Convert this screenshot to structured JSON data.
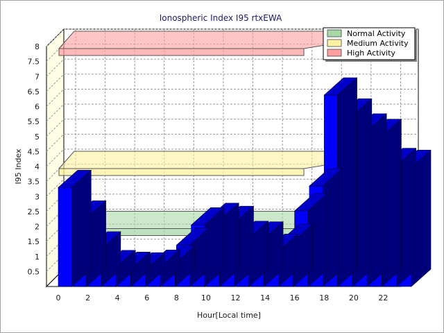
{
  "chart_data": {
    "type": "bar",
    "title": "Ionospheric Index I95 rtxEWA",
    "xlabel": "Hour[Local time]",
    "ylabel": "I95 Index",
    "ylim": [
      0,
      8
    ],
    "yticks": [
      "0.5",
      "1",
      "1.5",
      "2",
      "2.5",
      "3",
      "3.5",
      "4",
      "4.5",
      "5",
      "5.5",
      "6",
      "6.5",
      "7",
      "7.5",
      "8"
    ],
    "xticks": [
      "0",
      "2",
      "4",
      "6",
      "8",
      "10",
      "12",
      "14",
      "16",
      "18",
      "20",
      "22"
    ],
    "x": [
      0,
      1,
      2,
      3,
      4,
      5,
      6,
      7,
      8,
      9,
      10,
      11,
      12,
      13,
      14,
      15,
      16,
      17,
      18,
      19,
      20,
      21,
      22,
      23
    ],
    "values": [
      3.3,
      2.28,
      1.25,
      0.63,
      0.57,
      0.55,
      0.64,
      0.76,
      1.38,
      2.05,
      2.2,
      2.1,
      1.6,
      1.58,
      1.17,
      1.5,
      2.52,
      3.35,
      6.38,
      5.68,
      5.18,
      5.0,
      4.03,
      3.97
    ],
    "bar_color": "#0000ff",
    "grid": true,
    "legend_position": "top-right",
    "bands": [
      {
        "name": "Normal Activity",
        "level": 2,
        "color": "#a8d8a8"
      },
      {
        "name": "Medium Activity",
        "level": 4,
        "color": "#fff0a0"
      },
      {
        "name": "High Activity",
        "level": 8,
        "color": "#ff9f9f"
      }
    ]
  }
}
